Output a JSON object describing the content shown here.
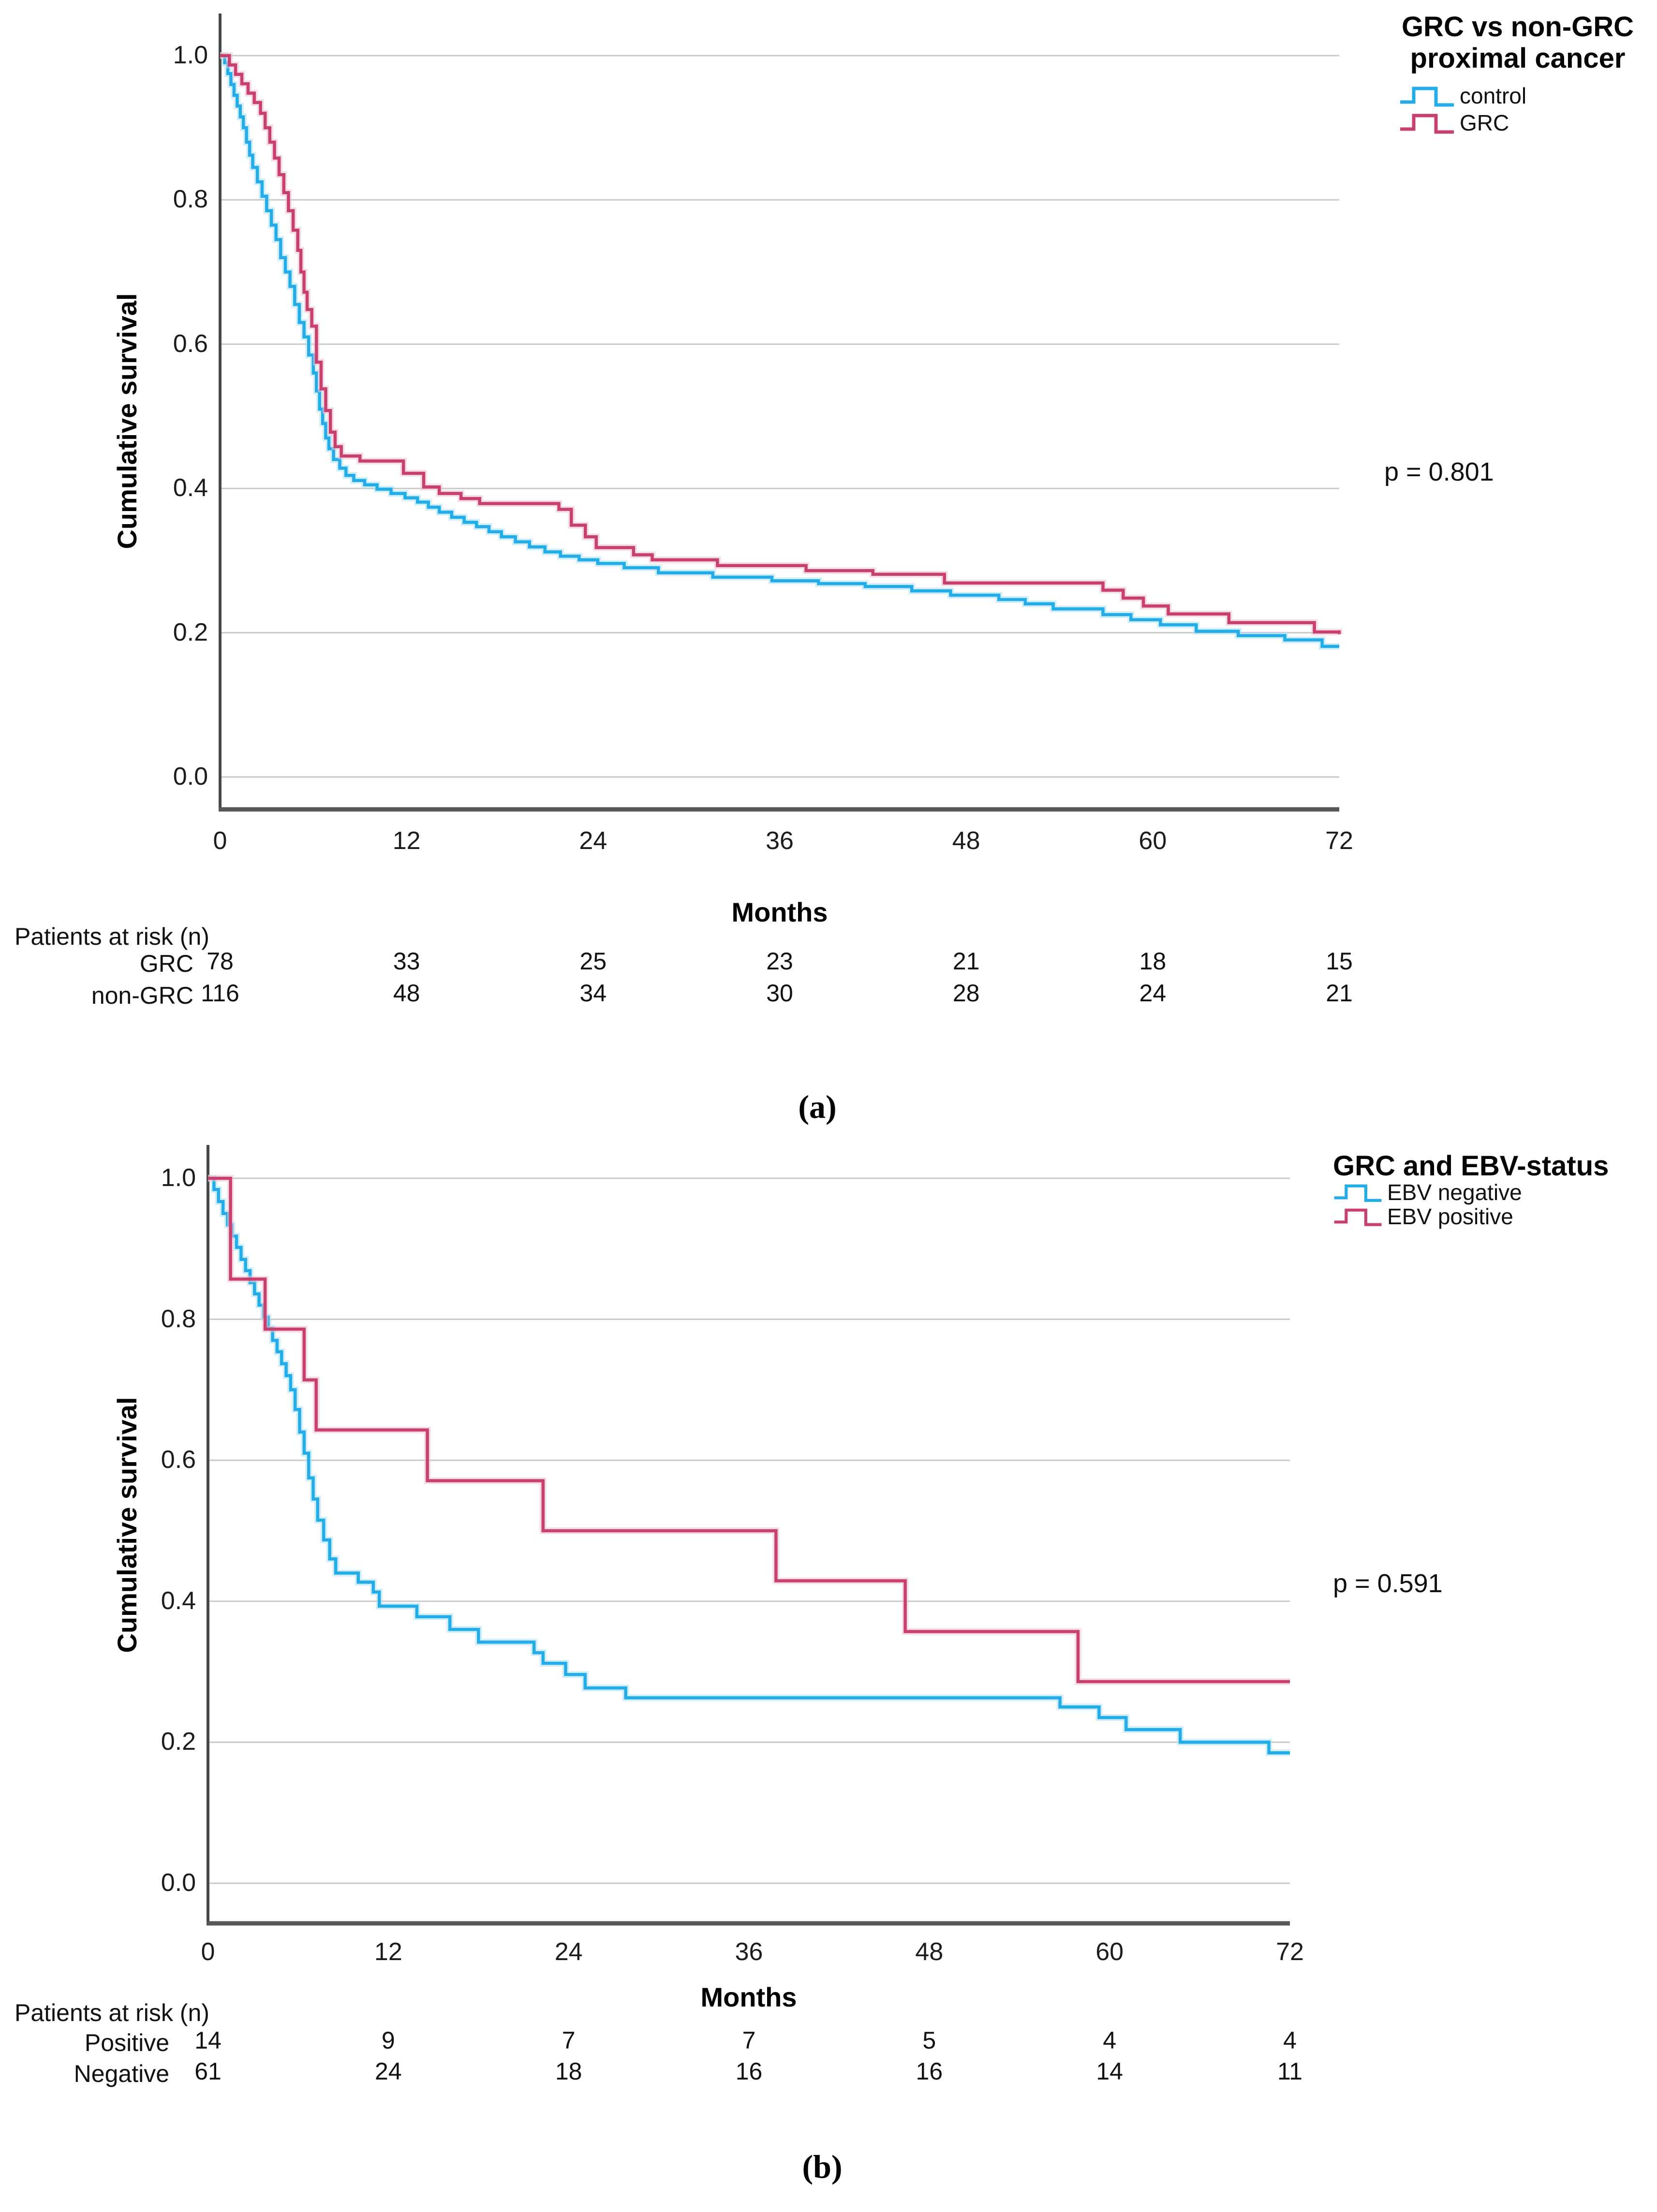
{
  "page": {
    "background": "#ffffff"
  },
  "chart_data": [
    {
      "type": "line",
      "subtype": "kaplan-meier-step",
      "panel": "a",
      "caption": "(a)",
      "legend_title_line1": "GRC vs non-GRC",
      "legend_title_line2": "proximal cancer",
      "legend_position": "top-right",
      "p_value": "p = 0.801",
      "xlabel": "Months",
      "ylabel": "Cumulative survival",
      "xlim": [
        0,
        72
      ],
      "ylim": [
        0.0,
        1.0
      ],
      "x_ticks": [
        0,
        12,
        24,
        36,
        48,
        60,
        72
      ],
      "y_ticks": [
        "1.0",
        "0.8",
        "0.6",
        "0.4",
        "0.2",
        "0.0"
      ],
      "grid": "horizontal",
      "series": [
        {
          "name": "control",
          "color": "#22ade8",
          "halo": "#aee0f7",
          "points": [
            [
              0,
              1.0
            ],
            [
              0.3,
              0.99
            ],
            [
              0.5,
              0.975
            ],
            [
              0.7,
              0.96
            ],
            [
              0.9,
              0.945
            ],
            [
              1.1,
              0.93
            ],
            [
              1.3,
              0.915
            ],
            [
              1.5,
              0.9
            ],
            [
              1.7,
              0.88
            ],
            [
              1.9,
              0.862
            ],
            [
              2.1,
              0.845
            ],
            [
              2.4,
              0.825
            ],
            [
              2.7,
              0.805
            ],
            [
              3.0,
              0.785
            ],
            [
              3.3,
              0.765
            ],
            [
              3.6,
              0.745
            ],
            [
              3.9,
              0.72
            ],
            [
              4.2,
              0.7
            ],
            [
              4.5,
              0.68
            ],
            [
              4.8,
              0.655
            ],
            [
              5.1,
              0.63
            ],
            [
              5.4,
              0.61
            ],
            [
              5.7,
              0.585
            ],
            [
              6.0,
              0.56
            ],
            [
              6.2,
              0.535
            ],
            [
              6.4,
              0.51
            ],
            [
              6.6,
              0.49
            ],
            [
              6.8,
              0.47
            ],
            [
              7.0,
              0.455
            ],
            [
              7.3,
              0.44
            ],
            [
              7.7,
              0.428
            ],
            [
              8.1,
              0.418
            ],
            [
              8.6,
              0.411
            ],
            [
              9.3,
              0.405
            ],
            [
              10.1,
              0.399
            ],
            [
              11.0,
              0.393
            ],
            [
              11.9,
              0.387
            ],
            [
              12.7,
              0.381
            ],
            [
              13.4,
              0.374
            ],
            [
              14.1,
              0.367
            ],
            [
              14.9,
              0.36
            ],
            [
              15.7,
              0.353
            ],
            [
              16.5,
              0.347
            ],
            [
              17.3,
              0.34
            ],
            [
              18.1,
              0.333
            ],
            [
              19.0,
              0.326
            ],
            [
              19.9,
              0.319
            ],
            [
              20.9,
              0.312
            ],
            [
              21.9,
              0.306
            ],
            [
              23.1,
              0.301
            ],
            [
              24.3,
              0.296
            ],
            [
              26.0,
              0.29
            ],
            [
              28.2,
              0.283
            ],
            [
              31.7,
              0.277
            ],
            [
              35.5,
              0.272
            ],
            [
              38.5,
              0.268
            ],
            [
              41.5,
              0.264
            ],
            [
              44.5,
              0.258
            ],
            [
              47.0,
              0.252
            ],
            [
              50.1,
              0.246
            ],
            [
              51.8,
              0.24
            ],
            [
              53.6,
              0.233
            ],
            [
              56.8,
              0.225
            ],
            [
              58.6,
              0.218
            ],
            [
              60.5,
              0.211
            ],
            [
              62.8,
              0.202
            ],
            [
              65.5,
              0.196
            ],
            [
              68.5,
              0.19
            ],
            [
              70.9,
              0.181
            ],
            [
              72,
              0.181
            ]
          ]
        },
        {
          "name": "GRC",
          "color": "#c9406e",
          "halo": "#eec2d2",
          "points": [
            [
              0,
              1.0
            ],
            [
              0.6,
              0.987
            ],
            [
              1.0,
              0.974
            ],
            [
              1.4,
              0.961
            ],
            [
              1.8,
              0.948
            ],
            [
              2.2,
              0.935
            ],
            [
              2.6,
              0.92
            ],
            [
              2.9,
              0.9
            ],
            [
              3.2,
              0.88
            ],
            [
              3.5,
              0.858
            ],
            [
              3.8,
              0.835
            ],
            [
              4.1,
              0.81
            ],
            [
              4.4,
              0.785
            ],
            [
              4.7,
              0.758
            ],
            [
              5.0,
              0.73
            ],
            [
              5.2,
              0.7
            ],
            [
              5.4,
              0.672
            ],
            [
              5.6,
              0.648
            ],
            [
              5.9,
              0.625
            ],
            [
              6.2,
              0.575
            ],
            [
              6.5,
              0.538
            ],
            [
              6.8,
              0.508
            ],
            [
              7.1,
              0.478
            ],
            [
              7.4,
              0.458
            ],
            [
              7.8,
              0.445
            ],
            [
              9.0,
              0.438
            ],
            [
              11.8,
              0.421
            ],
            [
              13.1,
              0.402
            ],
            [
              14.1,
              0.393
            ],
            [
              15.5,
              0.386
            ],
            [
              16.7,
              0.379
            ],
            [
              21.8,
              0.371
            ],
            [
              22.6,
              0.349
            ],
            [
              23.5,
              0.333
            ],
            [
              24.2,
              0.318
            ],
            [
              26.6,
              0.308
            ],
            [
              27.8,
              0.301
            ],
            [
              32.0,
              0.293
            ],
            [
              37.7,
              0.286
            ],
            [
              42.0,
              0.281
            ],
            [
              46.6,
              0.269
            ],
            [
              56.8,
              0.259
            ],
            [
              58.1,
              0.248
            ],
            [
              59.4,
              0.237
            ],
            [
              61.0,
              0.226
            ],
            [
              64.9,
              0.214
            ],
            [
              70.4,
              0.201
            ],
            [
              72,
              0.198
            ]
          ]
        }
      ],
      "risk_table": {
        "title": "Patients at risk (n)",
        "rows": [
          {
            "label": "GRC",
            "values": [
              78,
              33,
              25,
              23,
              21,
              18,
              15
            ]
          },
          {
            "label": "non-GRC",
            "values": [
              116,
              48,
              34,
              30,
              28,
              24,
              21
            ]
          }
        ]
      }
    },
    {
      "type": "line",
      "subtype": "kaplan-meier-step",
      "panel": "b",
      "caption": "(b)",
      "legend_title_line1": "GRC and EBV-status",
      "legend_title_line2": "",
      "legend_position": "top-right",
      "p_value": "p = 0.591",
      "xlabel": "Months",
      "ylabel": "Cumulative survival",
      "xlim": [
        0,
        72
      ],
      "ylim": [
        0.0,
        1.0
      ],
      "x_ticks": [
        0,
        12,
        24,
        36,
        48,
        60,
        72
      ],
      "y_ticks": [
        "1.0",
        "0.8",
        "0.6",
        "0.4",
        "0.2",
        "0.0"
      ],
      "grid": "horizontal",
      "series": [
        {
          "name": "EBV negative",
          "color": "#22ade8",
          "halo": "#aee0f7",
          "points": [
            [
              0,
              1.0
            ],
            [
              0.4,
              0.984
            ],
            [
              0.7,
              0.967
            ],
            [
              1.0,
              0.95
            ],
            [
              1.3,
              0.934
            ],
            [
              1.6,
              0.918
            ],
            [
              1.9,
              0.902
            ],
            [
              2.2,
              0.885
            ],
            [
              2.5,
              0.869
            ],
            [
              2.8,
              0.852
            ],
            [
              3.1,
              0.836
            ],
            [
              3.4,
              0.82
            ],
            [
              3.7,
              0.803
            ],
            [
              4.0,
              0.787
            ],
            [
              4.3,
              0.77
            ],
            [
              4.6,
              0.754
            ],
            [
              4.9,
              0.737
            ],
            [
              5.2,
              0.72
            ],
            [
              5.5,
              0.7
            ],
            [
              5.8,
              0.672
            ],
            [
              6.1,
              0.64
            ],
            [
              6.4,
              0.61
            ],
            [
              6.7,
              0.575
            ],
            [
              7.0,
              0.545
            ],
            [
              7.3,
              0.515
            ],
            [
              7.7,
              0.487
            ],
            [
              8.1,
              0.46
            ],
            [
              8.5,
              0.44
            ],
            [
              10.0,
              0.427
            ],
            [
              11.0,
              0.413
            ],
            [
              11.4,
              0.393
            ],
            [
              13.9,
              0.378
            ],
            [
              16.1,
              0.36
            ],
            [
              18.0,
              0.342
            ],
            [
              21.7,
              0.327
            ],
            [
              22.3,
              0.312
            ],
            [
              23.8,
              0.296
            ],
            [
              25.1,
              0.277
            ],
            [
              27.8,
              0.263
            ],
            [
              56.7,
              0.25
            ],
            [
              59.3,
              0.235
            ],
            [
              61.1,
              0.218
            ],
            [
              64.7,
              0.2
            ],
            [
              70.6,
              0.185
            ],
            [
              72,
              0.185
            ]
          ]
        },
        {
          "name": "EBV positive",
          "color": "#c9406e",
          "halo": "#eec2d2",
          "points": [
            [
              0,
              1.0
            ],
            [
              1.5,
              0.857
            ],
            [
              3.8,
              0.786
            ],
            [
              6.4,
              0.714
            ],
            [
              7.2,
              0.643
            ],
            [
              14.6,
              0.571
            ],
            [
              22.3,
              0.5
            ],
            [
              37.8,
              0.429
            ],
            [
              46.4,
              0.357
            ],
            [
              57.9,
              0.286
            ],
            [
              72,
              0.286
            ]
          ]
        }
      ],
      "risk_table": {
        "title": "Patients at risk (n)",
        "rows": [
          {
            "label": "Positive",
            "values": [
              14,
              9,
              7,
              7,
              5,
              4,
              4
            ]
          },
          {
            "label": "Negative",
            "values": [
              61,
              24,
              18,
              16,
              16,
              14,
              11
            ]
          }
        ]
      }
    }
  ]
}
